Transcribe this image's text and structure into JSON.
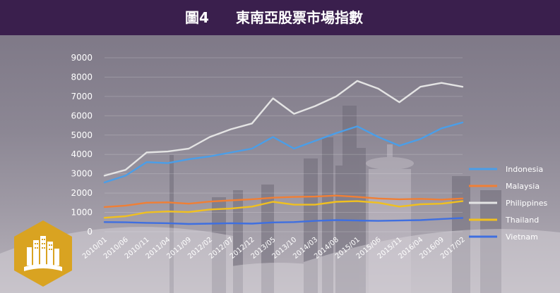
{
  "header": {
    "figure_number": "圖4",
    "title": "東南亞股票市場指數",
    "background_color": "#3a1f4d"
  },
  "logo": {
    "icon": "city-book-icon",
    "color": "#d9a321"
  },
  "chart_data": {
    "type": "line",
    "x_tick_labels": [
      "2010/01",
      "2010/06",
      "2010/11",
      "2011/04",
      "2011/09",
      "2012/02",
      "2012/07",
      "2012/12",
      "2013/05",
      "2013/10",
      "2014/03",
      "2014/08",
      "2015/01",
      "2015/06",
      "2015/11",
      "2016/04",
      "2016/09",
      "2017/02"
    ],
    "x": [
      "2010/01",
      "2010/06",
      "2010/11",
      "2011/04",
      "2011/09",
      "2012/02",
      "2012/07",
      "2012/12",
      "2013/05",
      "2013/10",
      "2014/03",
      "2014/08",
      "2015/01",
      "2015/06",
      "2015/11",
      "2016/04",
      "2016/09",
      "2017/02"
    ],
    "ylim": [
      0,
      9000
    ],
    "y_ticks": [
      0,
      1000,
      2000,
      3000,
      4000,
      5000,
      6000,
      7000,
      8000,
      9000
    ],
    "grid": true,
    "legend_position": "right",
    "series": [
      {
        "name": "Indonesia",
        "color": "#4a9ee8",
        "values": [
          2550,
          2900,
          3600,
          3550,
          3750,
          3900,
          4100,
          4300,
          4900,
          4300,
          4700,
          5100,
          5450,
          4900,
          4450,
          4800,
          5350,
          5650
        ]
      },
      {
        "name": "Malaysia",
        "color": "#f07f35",
        "values": [
          1280,
          1350,
          1500,
          1520,
          1450,
          1560,
          1620,
          1680,
          1760,
          1800,
          1820,
          1870,
          1800,
          1720,
          1680,
          1700,
          1660,
          1720
        ]
      },
      {
        "name": "Philippines",
        "color": "#e4e4e4",
        "values": [
          2900,
          3200,
          4100,
          4150,
          4300,
          4900,
          5300,
          5600,
          6900,
          6100,
          6500,
          7000,
          7800,
          7400,
          6700,
          7500,
          7700,
          7500
        ]
      },
      {
        "name": "Thailand",
        "color": "#f0c020",
        "values": [
          720,
          800,
          1000,
          1050,
          1020,
          1150,
          1200,
          1300,
          1550,
          1400,
          1400,
          1550,
          1580,
          1500,
          1300,
          1420,
          1450,
          1580
        ]
      },
      {
        "name": "Vietnam",
        "color": "#3f6fe0",
        "values": [
          500,
          490,
          460,
          440,
          400,
          420,
          440,
          420,
          480,
          500,
          560,
          600,
          580,
          560,
          580,
          600,
          660,
          710
        ]
      }
    ]
  }
}
